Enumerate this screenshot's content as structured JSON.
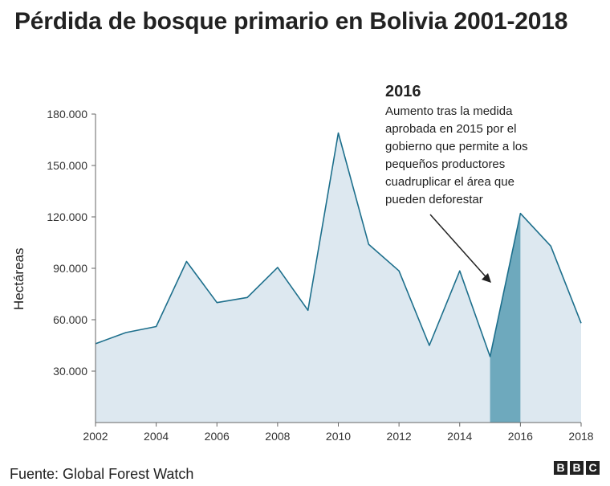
{
  "chart_data": {
    "type": "area",
    "title": "Pérdida de bosque primario en Bolivia 2001-2018",
    "ylabel": "Hectáreas",
    "xlabel": "",
    "x": [
      2002,
      2003,
      2004,
      2005,
      2006,
      2007,
      2008,
      2009,
      2010,
      2011,
      2012,
      2013,
      2014,
      2015,
      2016,
      2017,
      2018
    ],
    "values": [
      46000,
      52500,
      56000,
      94000,
      70000,
      73000,
      90500,
      65500,
      169000,
      104000,
      88500,
      45000,
      88500,
      38500,
      122000,
      103000,
      58000
    ],
    "ylim": [
      0,
      180000
    ],
    "xlim": [
      2002,
      2018
    ],
    "y_ticks": [
      "30.000",
      "60.000",
      "90.000",
      "120.000",
      "150.000",
      "180.000"
    ],
    "y_tick_values": [
      30000,
      60000,
      90000,
      120000,
      150000,
      180000
    ],
    "x_ticks": [
      "2002",
      "2004",
      "2006",
      "2008",
      "2010",
      "2012",
      "2014",
      "2016",
      "2018"
    ],
    "x_tick_values": [
      2002,
      2004,
      2006,
      2008,
      2010,
      2012,
      2014,
      2016,
      2018
    ],
    "highlight_range": [
      2015,
      2016
    ],
    "grid": false,
    "colors": {
      "line": "#1d6f8c",
      "fill": "#dde8f0",
      "highlight": "#6ea9bd",
      "axis": "#666666"
    }
  },
  "annotation": {
    "title": "2016",
    "text": "Aumento tras la medida aprobada en 2015 por el gobierno que permite a los pequeños productores cuadruplicar el área que pueden deforestar"
  },
  "source": "Fuente: Global Forest Watch",
  "logo": [
    "B",
    "B",
    "C"
  ]
}
